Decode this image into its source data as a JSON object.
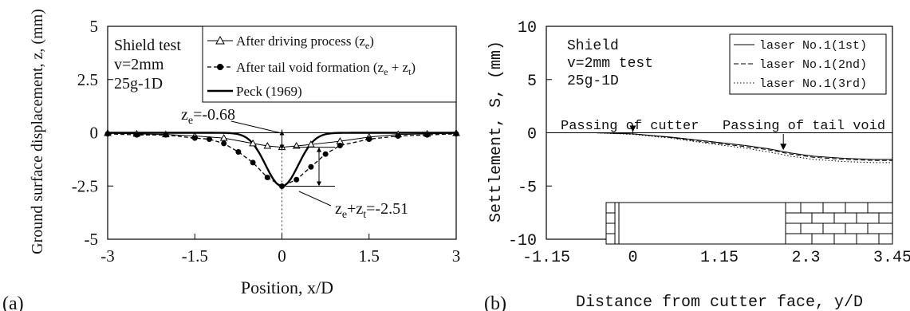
{
  "chart_data": [
    {
      "type": "line",
      "panel_label": "(a)",
      "xlabel": "Position, x/D",
      "ylabel": "Ground surface displacement, z, (mm)",
      "xlim": [
        -3,
        3
      ],
      "ylim": [
        -5,
        5
      ],
      "xticks": [
        "-3",
        "-1.5",
        "0",
        "1.5",
        "3"
      ],
      "yticks": [
        "5",
        "2.5",
        "0",
        "-2.5",
        "-5"
      ],
      "xtick_values": [
        -3,
        -1.5,
        0,
        1.5,
        3
      ],
      "ytick_values": [
        5,
        2.5,
        0,
        -2.5,
        -5
      ],
      "annotation_text": [
        "Shield test",
        "v=2mm",
        "25g-1D"
      ],
      "legend_position": "top-right",
      "series": [
        {
          "name": "After driving process (z_e)",
          "legend_main": "After driving process (z",
          "legend_sub": "e",
          "legend_close": ")",
          "line": "solid-thin",
          "marker": "open-triangle",
          "x": [
            -3,
            -2.5,
            -2,
            -1.5,
            -1,
            -0.5,
            -0.25,
            0,
            0.25,
            0.5,
            1,
            1.5,
            2,
            2.5,
            3
          ],
          "y": [
            -0.02,
            -0.05,
            -0.08,
            -0.15,
            -0.25,
            -0.5,
            -0.62,
            -0.68,
            -0.62,
            -0.55,
            -0.4,
            -0.2,
            -0.08,
            -0.05,
            -0.02
          ]
        },
        {
          "name": "After tail void formation (z_e + z_t)",
          "legend_main": "After tail void formation (z",
          "legend_sub": "e",
          "legend_mid": " + z",
          "legend_sub2": "t",
          "legend_close": ")",
          "line": "dashed",
          "marker": "filled-circle",
          "x": [
            -3,
            -2.5,
            -2,
            -1.5,
            -1.25,
            -1,
            -0.75,
            -0.5,
            -0.25,
            0,
            0.25,
            0.5,
            0.75,
            1,
            1.5,
            2,
            2.5,
            3
          ],
          "y": [
            -0.05,
            -0.1,
            -0.1,
            -0.25,
            -0.3,
            -0.5,
            -0.9,
            -1.4,
            -2.1,
            -2.51,
            -2.2,
            -1.6,
            -1.0,
            -0.6,
            -0.3,
            -0.15,
            -0.1,
            -0.05
          ]
        },
        {
          "name": "Peck (1969)",
          "legend_main": "Peck (1969)",
          "line": "solid-thick",
          "marker": "none",
          "peak": -2.51,
          "sigma": 0.28
        }
      ],
      "annotations": [
        {
          "main": "z",
          "sub": "e",
          "rest": "=-0.68",
          "x": 0,
          "y": -0.68
        },
        {
          "main": "z",
          "sub": "e",
          "mid": "+z",
          "sub2": "t",
          "rest": "=-2.51",
          "x": 0,
          "y": -2.51
        }
      ]
    },
    {
      "type": "line",
      "panel_label": "(b)",
      "xlabel": "Distance from cutter face,  y/D",
      "ylabel": "Settlement,  S,  (mm)",
      "xlim": [
        -1.15,
        3.45
      ],
      "ylim": [
        -10,
        10
      ],
      "xticks": [
        "-1.15",
        "0",
        "1.15",
        "2.3",
        "3.45"
      ],
      "yticks": [
        "10",
        "5",
        "0",
        "-5",
        "-10"
      ],
      "xtick_values": [
        -1.15,
        0,
        1.15,
        2.3,
        3.45
      ],
      "ytick_values": [
        10,
        5,
        0,
        -5,
        -10
      ],
      "annotation_text": [
        "Shield",
        "v=2mm  test",
        "25g-1D"
      ],
      "legend_position": "top-right",
      "series": [
        {
          "name": "laser  No.1(1st)",
          "line": "solid",
          "x": [
            -1.15,
            -0.5,
            0,
            0.5,
            1.0,
            1.5,
            1.8,
            2.1,
            2.4,
            2.8,
            3.2,
            3.45
          ],
          "y": [
            0,
            0,
            -0.1,
            -0.4,
            -0.8,
            -1.2,
            -1.5,
            -1.9,
            -2.2,
            -2.4,
            -2.5,
            -2.5
          ]
        },
        {
          "name": "laser  No.1(2nd)",
          "line": "dashed",
          "x": [
            -1.15,
            -0.5,
            0,
            0.5,
            1.0,
            1.5,
            1.8,
            2.1,
            2.4,
            2.8,
            3.2,
            3.45
          ],
          "y": [
            0,
            0,
            -0.1,
            -0.45,
            -0.9,
            -1.3,
            -1.6,
            -2.0,
            -2.3,
            -2.5,
            -2.6,
            -2.6
          ]
        },
        {
          "name": "laser  No.1(3rd)",
          "line": "dotted",
          "x": [
            -1.15,
            -0.5,
            0,
            0.5,
            1.0,
            1.5,
            1.8,
            2.1,
            2.4,
            2.8,
            3.2,
            3.45
          ],
          "y": [
            0,
            0,
            -0.15,
            -0.5,
            -1.0,
            -1.45,
            -1.8,
            -2.2,
            -2.5,
            -2.7,
            -2.8,
            -2.8
          ]
        }
      ],
      "annotations": [
        {
          "text": "Passing of cutter",
          "x": 0,
          "y": 0
        },
        {
          "text": "Passing of tail void",
          "x": 2.0,
          "y": -1.7
        }
      ]
    }
  ]
}
